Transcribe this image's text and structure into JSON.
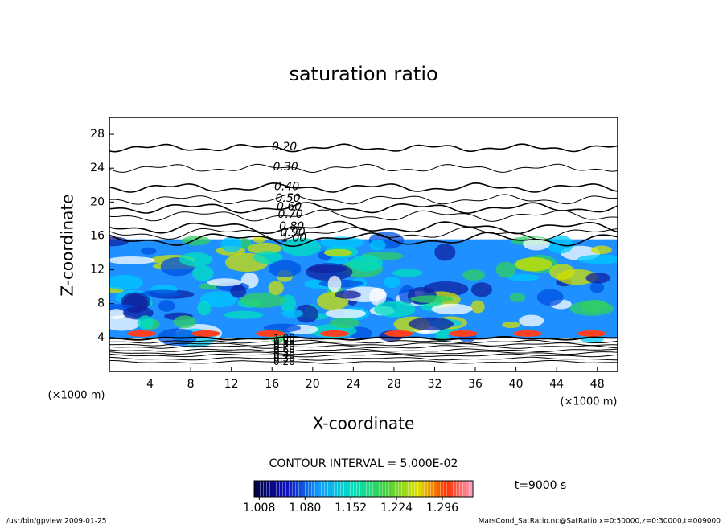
{
  "chart_data": {
    "type": "contour",
    "title": "saturation ratio",
    "xlabel": "X-coordinate",
    "ylabel": "Z-coordinate",
    "axis_unit": "(×1000 m)",
    "xlim": [
      0,
      50
    ],
    "xticks": [
      4,
      8,
      12,
      16,
      20,
      24,
      28,
      32,
      36,
      40,
      44,
      48
    ],
    "ylim": [
      0,
      30
    ],
    "yticks": [
      4,
      8,
      12,
      16,
      20,
      24,
      28
    ],
    "upper_contours": [
      {
        "value": 0.2,
        "label": "0.20",
        "z": 26.4
      },
      {
        "value": 0.3,
        "label": "0.30",
        "z": 24.0
      },
      {
        "value": 0.4,
        "label": "0.40",
        "z": 21.7
      },
      {
        "value": 0.5,
        "label": "0.50",
        "z": 20.3
      },
      {
        "value": 0.6,
        "label": "0.60",
        "z": 19.3
      },
      {
        "value": 0.7,
        "label": "0.70",
        "z": 18.4
      },
      {
        "value": 0.8,
        "label": "0.80",
        "z": 17.0
      },
      {
        "value": 0.9,
        "label": "0.90",
        "z": 16.3
      },
      {
        "value": 1,
        "label": "1.00",
        "z": 15.6
      }
    ],
    "lower_contours": [
      {
        "value": 1,
        "label": "1.00",
        "z": 3.9
      },
      {
        "value": 0.9,
        "label": "0.90",
        "z": 3.5
      },
      {
        "value": 0.8,
        "label": "0.80",
        "z": 3.2
      },
      {
        "value": 0.7,
        "label": "0.70",
        "z": 2.9
      },
      {
        "value": 0.6,
        "label": "0.60",
        "z": 2.5
      },
      {
        "value": 0.5,
        "label": "0.50",
        "z": 2.2
      },
      {
        "value": 0.4,
        "label": "0.40",
        "z": 1.9
      },
      {
        "value": 0.3,
        "label": "0.30",
        "z": 1.5
      },
      {
        "value": 0.2,
        "label": "0.20",
        "z": 1.1
      }
    ],
    "contour_interval": "CONTOUR INTERVAL = 5.000E-02",
    "colorbar_lim": [
      1.0,
      1.344
    ],
    "colorbar_ticks": [
      1.008,
      {
        "value": 1.08,
        "label": "1.080"
      },
      1.152,
      1.224,
      1.296
    ],
    "time_label": "t=9000 s",
    "footer_left": "/usr/bin/gpview  2009-01-25",
    "footer_right": "MarsCond_SatRatio.nc@SatRatio,x=0:50000,z=0:30000,t=009000"
  }
}
